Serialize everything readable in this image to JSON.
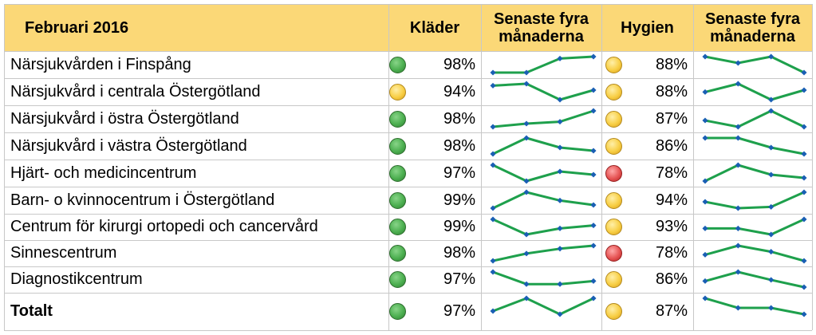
{
  "colors": {
    "header_bg": "#fbd877",
    "grid": "#c8c8c8",
    "sparkline": "#1ea04c",
    "marker": "#1a5fb4",
    "status_green": "#4caf50",
    "status_yellow": "#f8cf45",
    "status_red": "#e65454"
  },
  "chart_data": {
    "type": "table",
    "headers": [
      "Februari 2016",
      "Kläder",
      "Senaste fyra månaderna",
      "Hygien",
      "Senaste fyra månaderna"
    ],
    "rows": [
      {
        "name": "Närsjukvården i Finspång",
        "total": false,
        "klader": "98%",
        "klader_status": "green",
        "klader_trend": [
          1,
          1,
          3.2,
          3.5
        ],
        "hygien": "88%",
        "hygien_status": "yellow",
        "hygien_trend": [
          3.5,
          2.5,
          3.5,
          1
        ]
      },
      {
        "name": "Närsjukvård i centrala Östergötland",
        "total": false,
        "klader": "94%",
        "klader_status": "yellow",
        "klader_trend": [
          3.2,
          3.5,
          1,
          2.5
        ],
        "hygien": "88%",
        "hygien_status": "yellow",
        "hygien_trend": [
          2.2,
          3.5,
          1,
          2.5
        ]
      },
      {
        "name": "Närsjukvård i östra Östergötland",
        "total": false,
        "klader": "98%",
        "klader_status": "green",
        "klader_trend": [
          1,
          1.5,
          1.8,
          3.5
        ],
        "hygien": "87%",
        "hygien_status": "yellow",
        "hygien_trend": [
          2,
          1,
          3.5,
          1
        ]
      },
      {
        "name": "Närsjukvård i västra Östergötland",
        "total": false,
        "klader": "98%",
        "klader_status": "green",
        "klader_trend": [
          1,
          3.5,
          2,
          1.5
        ],
        "hygien": "86%",
        "hygien_status": "yellow",
        "hygien_trend": [
          3.5,
          3.5,
          2,
          1
        ]
      },
      {
        "name": "Hjärt- och medicincentrum",
        "total": false,
        "klader": "97%",
        "klader_status": "green",
        "klader_trend": [
          3.5,
          1,
          2.5,
          2
        ],
        "hygien": "78%",
        "hygien_status": "red",
        "hygien_trend": [
          1,
          3.5,
          2,
          1.5
        ]
      },
      {
        "name": "Barn- o kvinnocentrum i Östergötland",
        "total": false,
        "klader": "99%",
        "klader_status": "green",
        "klader_trend": [
          1,
          3.5,
          2.2,
          1.5
        ],
        "hygien": "94%",
        "hygien_status": "yellow",
        "hygien_trend": [
          2,
          1,
          1.2,
          3.5
        ]
      },
      {
        "name": "Centrum för kirurgi ortopedi och cancervård",
        "total": false,
        "klader": "99%",
        "klader_status": "green",
        "klader_trend": [
          3.5,
          1,
          2,
          2.5
        ],
        "hygien": "93%",
        "hygien_status": "yellow",
        "hygien_trend": [
          2,
          2,
          1,
          3.5
        ]
      },
      {
        "name": "Sinnescentrum",
        "total": false,
        "klader": "98%",
        "klader_status": "green",
        "klader_trend": [
          1,
          2.2,
          3,
          3.5
        ],
        "hygien": "78%",
        "hygien_status": "red",
        "hygien_trend": [
          2,
          3.5,
          2.5,
          1
        ]
      },
      {
        "name": "Diagnostikcentrum",
        "total": false,
        "klader": "97%",
        "klader_status": "green",
        "klader_trend": [
          3.5,
          1.5,
          1.5,
          2
        ],
        "hygien": "86%",
        "hygien_status": "yellow",
        "hygien_trend": [
          2,
          3.5,
          2.2,
          1
        ]
      },
      {
        "name": "Totalt",
        "total": true,
        "klader": "97%",
        "klader_status": "green",
        "klader_trend": [
          1.5,
          3.5,
          1,
          3.5
        ],
        "hygien": "87%",
        "hygien_status": "yellow",
        "hygien_trend": [
          3.5,
          2,
          2,
          1
        ]
      }
    ]
  }
}
